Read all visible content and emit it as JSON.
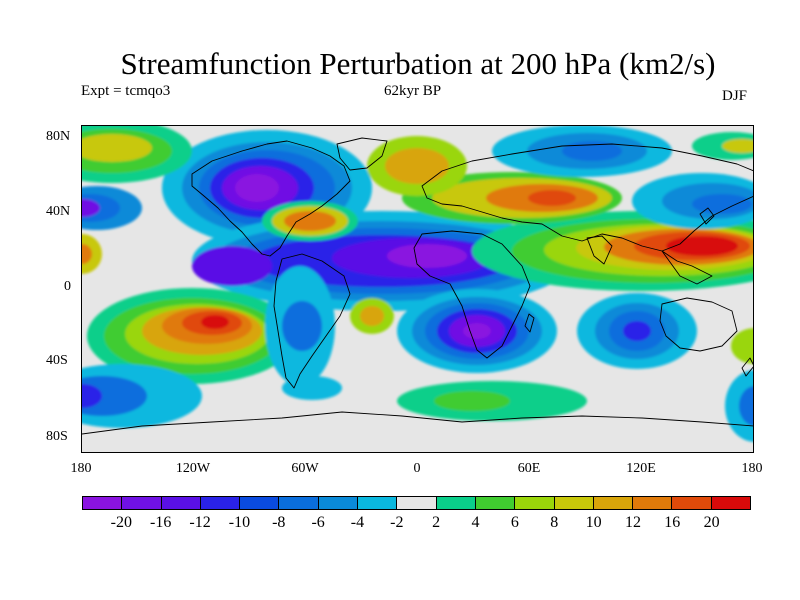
{
  "title": "Streamfunction Perturbation at 200 hPa (km2/s)",
  "subtitle_left": "Expt = tcmqo3",
  "subtitle_center": "62kyr BP",
  "subtitle_right": "DJF",
  "axes": {
    "y_ticks": [
      "80N",
      "40N",
      "0",
      "40S",
      "80S"
    ],
    "x_ticks": [
      "180",
      "120W",
      "60W",
      "0",
      "60E",
      "120E",
      "180"
    ]
  },
  "colorbar": {
    "colors": [
      "#8a13e0",
      "#7011e4",
      "#5a10e6",
      "#2a22e8",
      "#0a4be0",
      "#0a6edd",
      "#0a8ad8",
      "#0ab8df",
      "#e6e6e6",
      "#0acf8a",
      "#40cc30",
      "#9ad60a",
      "#c8c80a",
      "#d8a50a",
      "#e07a0a",
      "#e04a0a",
      "#d80a0a"
    ],
    "labels": [
      "-20",
      "-16",
      "-12",
      "-10",
      "-8",
      "-6",
      "-4",
      "-2",
      "2",
      "4",
      "6",
      "8",
      "10",
      "12",
      "16",
      "20"
    ]
  },
  "map_colors": {
    "background": "#e6e6e6",
    "coast": "#000000"
  }
}
